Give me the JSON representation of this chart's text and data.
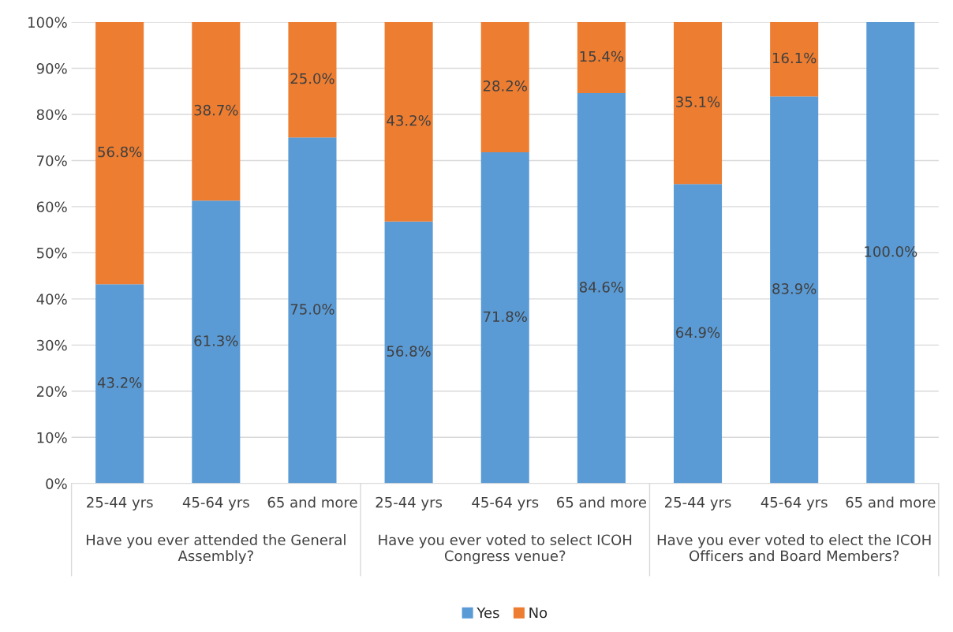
{
  "chart_data": {
    "type": "bar",
    "stacked": true,
    "categories": [
      "25-44 yrs",
      "45-64 yrs",
      "65 and more",
      "25-44 yrs",
      "45-64 yrs",
      "65 and more",
      "25-44 yrs",
      "45-64 yrs",
      "65 and more"
    ],
    "series": [
      {
        "name": "Yes",
        "color": "#5b9bd5",
        "values": [
          43.2,
          61.3,
          75.0,
          56.8,
          71.8,
          84.6,
          64.9,
          83.9,
          100.0
        ],
        "value_labels": [
          "43.2%",
          "61.3%",
          "75.0%",
          "56.8%",
          "71.8%",
          "84.6%",
          "64.9%",
          "83.9%",
          "100.0%"
        ]
      },
      {
        "name": "No",
        "color": "#ed7d31",
        "values": [
          56.8,
          38.7,
          25.0,
          43.2,
          28.2,
          15.4,
          35.1,
          16.1,
          0
        ],
        "value_labels": [
          "56.8%",
          "38.7%",
          "25.0%",
          "43.2%",
          "28.2%",
          "15.4%",
          "35.1%",
          "16.1%",
          null
        ]
      }
    ],
    "annotations": [
      "Have you ever attended the General\nAssembly?",
      "Have you ever voted to select ICOH\nCongress venue?",
      "Have you ever voted to elect the ICOH\nOfficers and Board Members?"
    ],
    "ylim": [
      0,
      100
    ],
    "yticks": [
      {
        "value": 0,
        "label": "0%"
      },
      {
        "value": 10,
        "label": "10%"
      },
      {
        "value": 20,
        "label": "20%"
      },
      {
        "value": 30,
        "label": "30%"
      },
      {
        "value": 40,
        "label": "40%"
      },
      {
        "value": 50,
        "label": "50%"
      },
      {
        "value": 60,
        "label": "60%"
      },
      {
        "value": 70,
        "label": "70%"
      },
      {
        "value": 80,
        "label": "80%"
      },
      {
        "value": 90,
        "label": "90%"
      },
      {
        "value": 100,
        "label": "100%"
      }
    ],
    "grid": "y",
    "legend": "bottom"
  }
}
